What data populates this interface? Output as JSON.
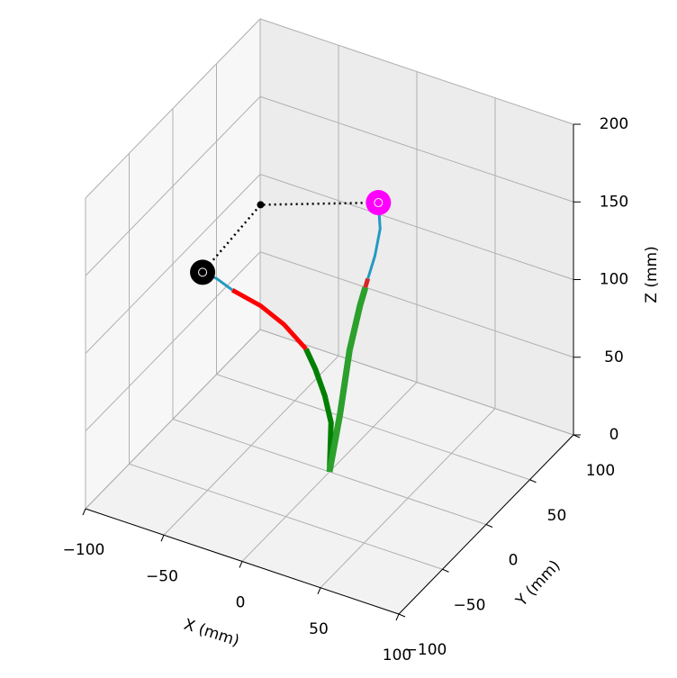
{
  "chart_data": {
    "type": "line3d",
    "xlabel": "X (mm)",
    "ylabel": "Y (mm)",
    "zlabel": "Z (mm)",
    "xlim": [
      -100,
      100
    ],
    "ylim": [
      -100,
      100
    ],
    "zlim": [
      0,
      200
    ],
    "xticks": [
      {
        "value": -100,
        "label": "−100"
      },
      {
        "value": -50,
        "label": "−50"
      },
      0,
      50,
      100
    ],
    "yticks": [
      {
        "value": -100,
        "label": "−100"
      },
      {
        "value": -50,
        "label": "−50"
      },
      0,
      50,
      100
    ],
    "zticks": [
      0,
      50,
      100,
      150,
      200
    ],
    "grid": true,
    "series": [
      {
        "color": "#008000",
        "width": 6,
        "x": [
          0,
          1,
          -3,
          -9,
          -15
        ],
        "y": [
          0,
          0,
          0,
          0,
          0
        ],
        "z": [
          0,
          32,
          48,
          63,
          74
        ]
      },
      {
        "color": "#ff0000",
        "width": 5,
        "x": [
          -15,
          -29,
          -44,
          -62
        ],
        "y": [
          0,
          0,
          0,
          0
        ],
        "z": [
          74,
          85,
          92,
          96
        ]
      },
      {
        "color": "#2599c0",
        "width": 3,
        "x": [
          -62,
          -72,
          -81
        ],
        "y": [
          0,
          0,
          0
        ],
        "z": [
          96,
          100,
          101
        ]
      },
      {
        "color": "#2ca02c",
        "width": 7,
        "x": [
          0,
          0,
          0,
          0,
          0
        ],
        "y": [
          0,
          12,
          23,
          35,
          41
        ],
        "z": [
          0,
          30,
          65,
          87,
          95
        ]
      },
      {
        "color": "#d62728",
        "width": 5,
        "x": [
          0,
          0
        ],
        "y": [
          41,
          44
        ],
        "z": [
          95,
          99
        ]
      },
      {
        "color": "#2599c0",
        "width": 3,
        "x": [
          0,
          0,
          0,
          0
        ],
        "y": [
          44,
          52,
          58,
          56
        ],
        "z": [
          99,
          109,
          123,
          141
        ]
      }
    ],
    "path": {
      "color": "#000000",
      "x": [
        -81,
        -44,
        0
      ],
      "y": [
        0,
        0,
        56
      ],
      "z": [
        101,
        157,
        141
      ]
    },
    "markers": [
      {
        "color": "#000000",
        "x": -81,
        "y": 0,
        "z": 101
      },
      {
        "color": "#ff00ff",
        "x": 0,
        "y": 56,
        "z": 141
      }
    ]
  }
}
